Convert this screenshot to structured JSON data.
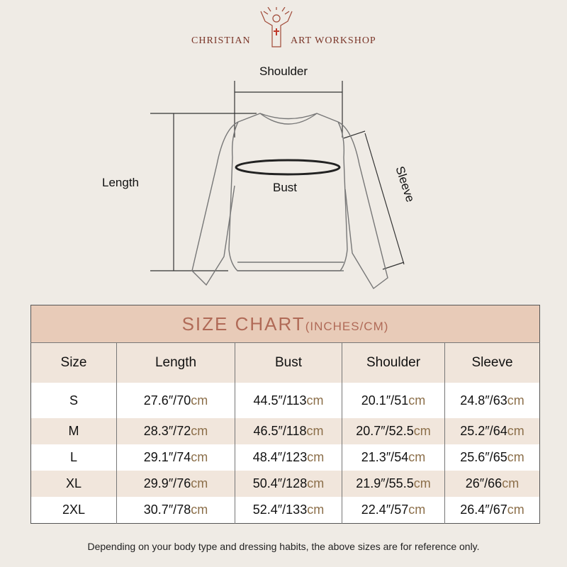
{
  "brand": {
    "left": "CHRISTIAN",
    "right": "ART WORKSHOP"
  },
  "diagram": {
    "shoulder": "Shoulder",
    "length": "Length",
    "bust": "Bust",
    "sleeve": "Sleeve"
  },
  "table": {
    "title": "SIZE CHART",
    "title_unit": "(INCHES/CM)",
    "headers": [
      "Size",
      "Length",
      "Bust",
      "Shoulder",
      "Sleeve"
    ],
    "rows": [
      [
        "S",
        [
          "27.6″/70",
          "cm"
        ],
        [
          "44.5″/113",
          "cm"
        ],
        [
          "20.1″/51",
          "cm"
        ],
        [
          "24.8″/63",
          "cm"
        ]
      ],
      [
        "M",
        [
          "28.3″/72",
          "cm"
        ],
        [
          "46.5″/118",
          "cm"
        ],
        [
          "20.7″/52.5",
          "cm"
        ],
        [
          "25.2″/64",
          "cm"
        ]
      ],
      [
        "L",
        [
          "29.1″/74",
          "cm"
        ],
        [
          "48.4″/123",
          "cm"
        ],
        [
          "21.3″/54",
          "cm"
        ],
        [
          "25.6″/65",
          "cm"
        ]
      ],
      [
        "XL",
        [
          "29.9″/76",
          "cm"
        ],
        [
          "50.4″/128",
          "cm"
        ],
        [
          "21.9″/55.5",
          "cm"
        ],
        [
          "26″/66",
          "cm"
        ]
      ],
      [
        "2XL",
        [
          "30.7″/78",
          "cm"
        ],
        [
          "52.4″/133",
          "cm"
        ],
        [
          "22.4″/57",
          "cm"
        ],
        [
          "26.4″/67",
          "cm"
        ]
      ]
    ]
  },
  "note": "Depending on your body type and dressing habits, the above sizes are for reference only.",
  "colors": {
    "header_band": "#e8cbb8",
    "title": "#b06a57",
    "cm": "#8c6f4a",
    "brand": "#7a3528"
  }
}
